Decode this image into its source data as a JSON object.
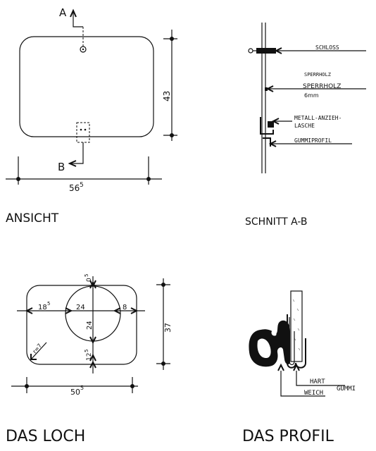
{
  "ansicht": {
    "title": "ANSICHT",
    "section_top": "A",
    "section_bottom": "B",
    "dim_width": "56",
    "dim_width_sup": "5",
    "dim_height": "43"
  },
  "schnitt": {
    "title": "SCHNITT A-B",
    "callouts": {
      "schloss": "SCHLOSS",
      "sperrholz_small": "SPERRHOLZ",
      "sperrholz": "SPERRHOLZ",
      "thickness": "6mm",
      "metall_1": "METALL-ANZIEH-",
      "metall_2": "LASCHE",
      "gummi": "GUMMIPROFIL"
    }
  },
  "loch": {
    "title": "DAS LOCH",
    "dim_left": "18",
    "dim_left_sup": "5",
    "dim_circle_h": "24",
    "dim_circle_v": "24",
    "dim_right": "8",
    "dim_top": "0",
    "dim_top_sup": "5",
    "dim_bottom": "12",
    "dim_bottom_sup": "5",
    "dim_radius": "r=7",
    "dim_width": "50",
    "dim_width_sup": "5",
    "dim_height": "37"
  },
  "profil": {
    "title": "DAS PROFIL",
    "label_hart": "HART",
    "label_gummi": "GUMMI",
    "label_weich": "WEICH"
  }
}
